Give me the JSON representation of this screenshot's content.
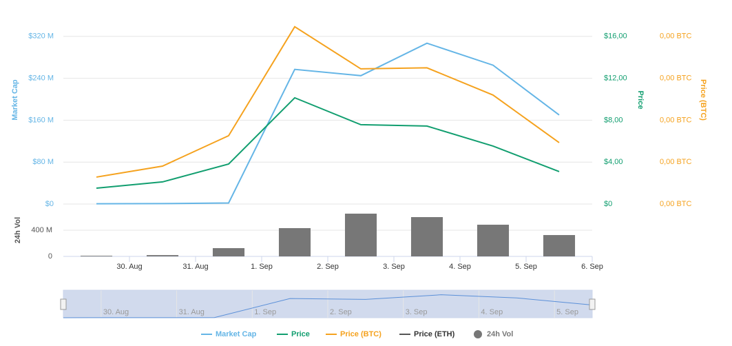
{
  "chart_data": {
    "type": "line",
    "x": [
      -0.5,
      0.5,
      1.5,
      2.5,
      3.5,
      4.5,
      5.5,
      6.5
    ],
    "xlim": [
      -1,
      7
    ],
    "xticks": [
      {
        "value": 0,
        "label": "30. Aug"
      },
      {
        "value": 1,
        "label": "31. Aug"
      },
      {
        "value": 2,
        "label": "1. Sep"
      },
      {
        "value": 3,
        "label": "2. Sep"
      },
      {
        "value": 4,
        "label": "3. Sep"
      },
      {
        "value": 5,
        "label": "4. Sep"
      },
      {
        "value": 6,
        "label": "5. Sep"
      },
      {
        "value": 7,
        "label": "6. Sep"
      }
    ],
    "ylabel": "Market Cap",
    "ylim": [
      0,
      350
    ],
    "yticks": [
      {
        "value": 0,
        "label": "$0"
      },
      {
        "value": 80,
        "label": "$80 M"
      },
      {
        "value": 160,
        "label": "$160 M"
      },
      {
        "value": 240,
        "label": "$240 M"
      },
      {
        "value": 320,
        "label": "$320 M"
      }
    ],
    "y2label": "Price",
    "y2lim": [
      0,
      17.5
    ],
    "y2ticks": [
      {
        "value": 0,
        "label": "$0"
      },
      {
        "value": 4,
        "label": "$4,00"
      },
      {
        "value": 8,
        "label": "$8,00"
      },
      {
        "value": 12,
        "label": "$12,00"
      },
      {
        "value": 16,
        "label": "$16,00"
      }
    ],
    "y3label": "Price (BTC)",
    "y3lim": [
      0,
      0.00175
    ],
    "y3ticks": [
      {
        "value": 0,
        "label": "0,00 BTC"
      },
      {
        "value": 0.0004,
        "label": "0,00 BTC"
      },
      {
        "value": 0.0008,
        "label": "0,00 BTC"
      },
      {
        "value": 0.0012,
        "label": "0,00 BTC"
      },
      {
        "value": 0.0016,
        "label": "0,00 BTC"
      }
    ],
    "y4label": "24h Vol",
    "y4lim": [
      0,
      800
    ],
    "y4ticks": [
      0,
      {
        "value": 400,
        "label": "400 M"
      }
    ],
    "grid": true,
    "legend": "bottom",
    "navigator": {
      "xlim": [
        -0.5,
        6.5
      ]
    },
    "series": [
      {
        "name": "Market Cap",
        "color": "#64b5e6",
        "axis": "y",
        "values": [
          0.5,
          0.8,
          2,
          257,
          245,
          307,
          265,
          170
        ]
      },
      {
        "name": "Price",
        "color": "#119e6f",
        "axis": "y2",
        "values": [
          1.51,
          2.11,
          3.82,
          10.14,
          7.57,
          7.44,
          5.53,
          3.1
        ]
      },
      {
        "name": "Price (BTC)",
        "color": "#f5a21e",
        "axis": "y3",
        "values": [
          0.000257,
          0.000362,
          0.000652,
          0.001692,
          0.00129,
          0.0013,
          0.00104,
          0.000586
        ]
      },
      {
        "name": "Price (ETH)",
        "color": "#555555",
        "axis": "y3",
        "values": [
          null,
          null,
          null,
          null,
          null,
          null,
          null,
          null
        ]
      },
      {
        "name": "24h Vol",
        "color": "#777777",
        "axis": "y4",
        "type": "bar",
        "values": [
          10,
          20,
          126,
          432,
          653,
          600,
          484,
          326
        ]
      }
    ]
  }
}
